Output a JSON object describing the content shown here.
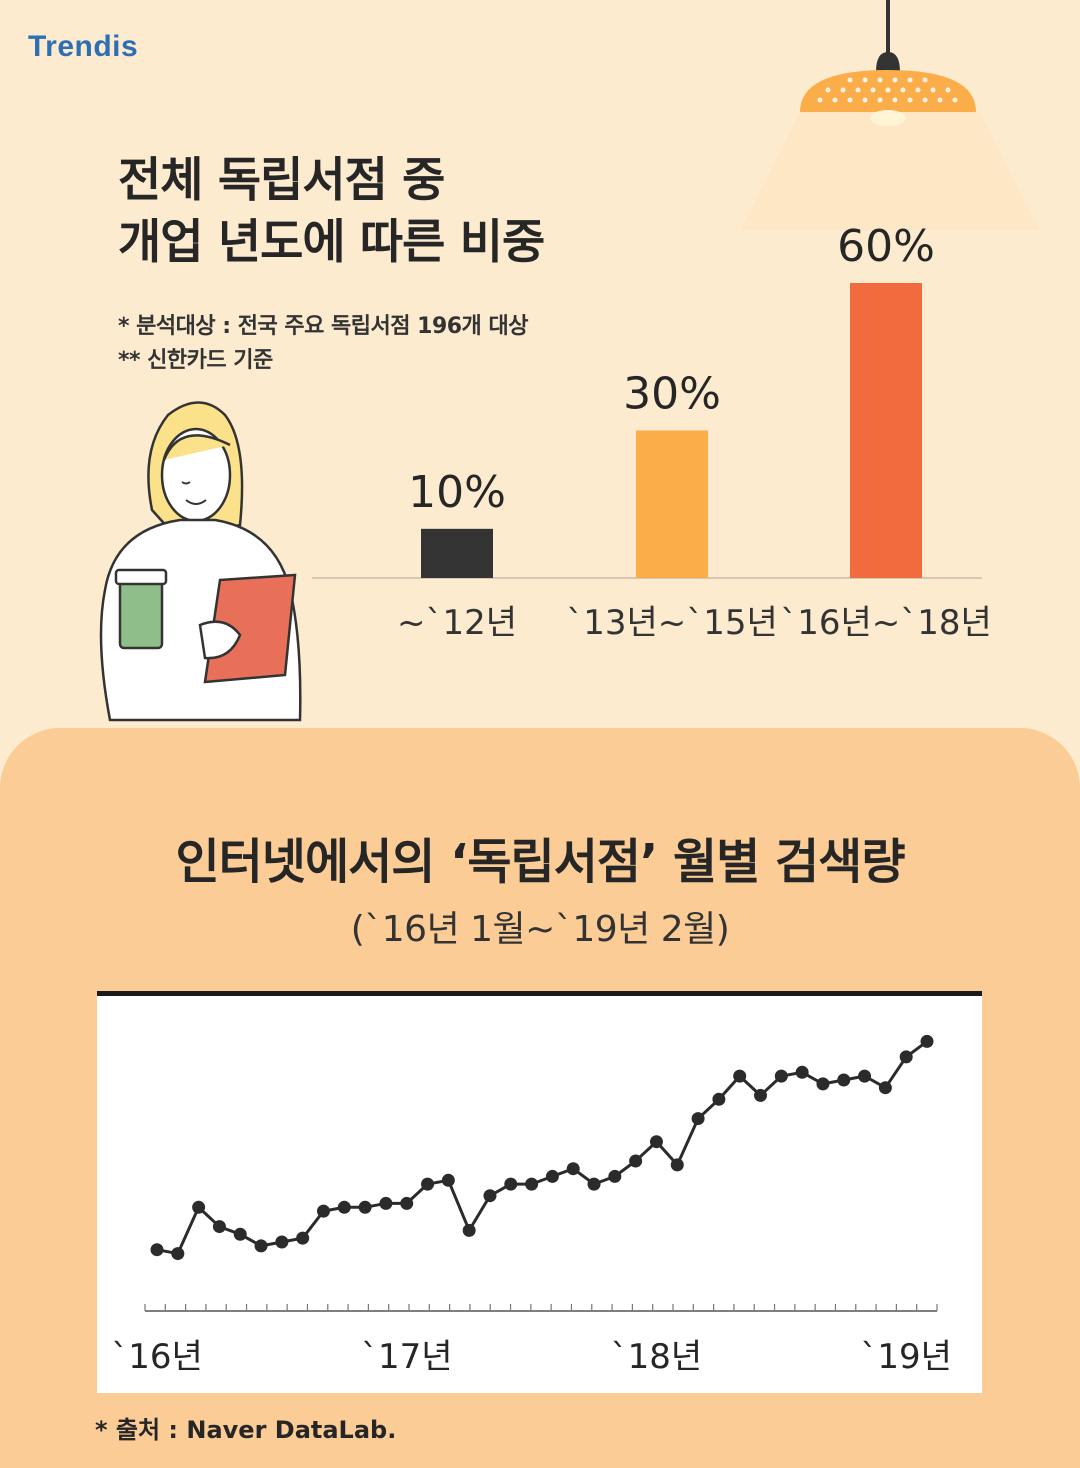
{
  "brand": {
    "logo_text": "Trendis"
  },
  "section1": {
    "title_line1": "전체 독립서점 중",
    "title_line2": "개업 년도에 따른 비중",
    "note1": "* 분석대상 : 전국 주요 독립서점 196개 대상",
    "note2": "** 신한카드 기준"
  },
  "section2": {
    "title": "인터넷에서의 ‘독립서점’ 월별 검색량",
    "subtitle": "(`16년 1월~`19년 2월)",
    "source": "* 출처 : Naver DataLab."
  },
  "colors": {
    "background_top": "#fdebd0",
    "background_bottom": "#fccc97",
    "bar_1": "#333333",
    "bar_2": "#fbad4a",
    "bar_3": "#f26b3e",
    "line": "#2b2b2b",
    "logo": "#2d6fb5"
  },
  "chart_data": [
    {
      "type": "bar",
      "categories": [
        "~`12년",
        "`13년~`15년",
        "`16년~`18년"
      ],
      "values": [
        10,
        30,
        60
      ],
      "value_labels": [
        "10%",
        "30%",
        "60%"
      ],
      "unit": "%",
      "ylim": [
        0,
        60
      ],
      "grid": false,
      "legend": "none"
    },
    {
      "type": "line",
      "x_tick_labels": [
        "`16년",
        "`17년",
        "`18년",
        "`19년"
      ],
      "x_start": "2016-01",
      "x_end": "2019-02",
      "values": [
        22,
        21,
        33,
        28,
        26,
        23,
        24,
        25,
        32,
        33,
        33,
        34,
        34,
        39,
        40,
        27,
        36,
        39,
        39,
        41,
        43,
        39,
        41,
        45,
        50,
        44,
        56,
        61,
        67,
        62,
        67,
        68,
        65,
        66,
        67,
        64,
        72,
        76
      ],
      "y_axis_visible": false,
      "grid": false,
      "legend": "none"
    }
  ]
}
